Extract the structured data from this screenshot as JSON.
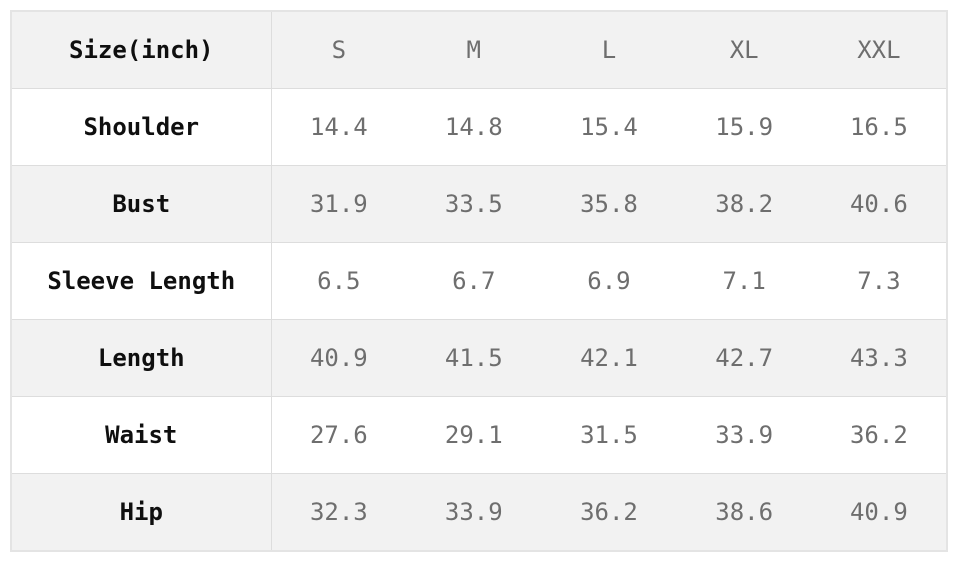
{
  "chart_data": {
    "type": "table",
    "title": "Size(inch)",
    "columns": [
      "S",
      "M",
      "L",
      "XL",
      "XXL"
    ],
    "rows": [
      {
        "label": "Shoulder",
        "values": [
          "14.4",
          "14.8",
          "15.4",
          "15.9",
          "16.5"
        ]
      },
      {
        "label": "Bust",
        "values": [
          "31.9",
          "33.5",
          "35.8",
          "38.2",
          "40.6"
        ]
      },
      {
        "label": "Sleeve Length",
        "values": [
          "6.5",
          "6.7",
          "6.9",
          "7.1",
          "7.3"
        ]
      },
      {
        "label": "Length",
        "values": [
          "40.9",
          "41.5",
          "42.1",
          "42.7",
          "43.3"
        ]
      },
      {
        "label": "Waist",
        "values": [
          "27.6",
          "29.1",
          "31.5",
          "33.9",
          "36.2"
        ]
      },
      {
        "label": "Hip",
        "values": [
          "32.3",
          "33.9",
          "36.2",
          "38.6",
          "40.9"
        ]
      }
    ],
    "layout": {
      "legend": "none",
      "grid": "row-borders-and-label-column-divider",
      "row_shading": "alternating"
    }
  },
  "colors": {
    "shaded_row_background": "#f2f2f2",
    "white_row_background": "#ffffff",
    "border": "#dddddd",
    "outer_border": "#e4e4e4",
    "label_text": "#0f0f0f",
    "value_text": "#6e6e6e"
  }
}
